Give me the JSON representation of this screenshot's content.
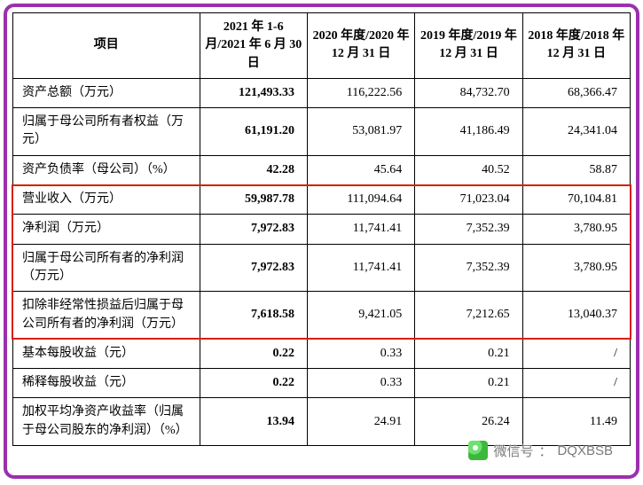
{
  "frame": {
    "border_color": "#9b2fae",
    "border_width": 4,
    "radius": 12
  },
  "highlight": {
    "border_color": "#d81e06",
    "border_width": 2.5
  },
  "table": {
    "header": {
      "item": "项目",
      "periods": [
        "2021 年 1-6 月/2021 年 6 月 30 日",
        "2020 年度/2020 年 12 月 31 日",
        "2019 年度/2019 年 12 月 31 日",
        "2018 年度/2018 年 12 月 31 日"
      ]
    },
    "rows": [
      {
        "label": "资产总额（万元）",
        "values": [
          "121,493.33",
          "116,222.56",
          "84,732.70",
          "68,366.47"
        ]
      },
      {
        "label": "归属于母公司所有者权益（万元）",
        "values": [
          "61,191.20",
          "53,081.97",
          "41,186.49",
          "24,341.04"
        ]
      },
      {
        "label": "资产负债率（母公司）（%）",
        "values": [
          "42.28",
          "45.64",
          "40.52",
          "58.87"
        ]
      },
      {
        "label": "营业收入（万元）",
        "values": [
          "59,987.78",
          "111,094.64",
          "71,023.04",
          "70,104.81"
        ]
      },
      {
        "label": "净利润（万元）",
        "values": [
          "7,972.83",
          "11,741.41",
          "7,352.39",
          "3,780.95"
        ]
      },
      {
        "label": "归属于母公司所有者的净利润（万元）",
        "values": [
          "7,972.83",
          "11,741.41",
          "7,352.39",
          "3,780.95"
        ]
      },
      {
        "label": "扣除非经常性损益后归属于母公司所有者的净利润（万元）",
        "values": [
          "7,618.58",
          "9,421.05",
          "7,212.65",
          "13,040.37"
        ]
      },
      {
        "label": "基本每股收益（元）",
        "values": [
          "0.22",
          "0.33",
          "0.21",
          "/"
        ]
      },
      {
        "label": "稀释每股收益（元）",
        "values": [
          "0.22",
          "0.33",
          "0.21",
          "/"
        ]
      },
      {
        "label": "加权平均净资产收益率（归属于母公司股东的净利润）（%）",
        "values": [
          "13.94",
          "24.91",
          "26.24",
          "11.49"
        ]
      }
    ],
    "first_value_column_bold": true
  },
  "highlight_rows": {
    "start_index": 3,
    "end_index": 6
  },
  "watermark": {
    "label": "微信号",
    "value": "DQXBSB"
  }
}
